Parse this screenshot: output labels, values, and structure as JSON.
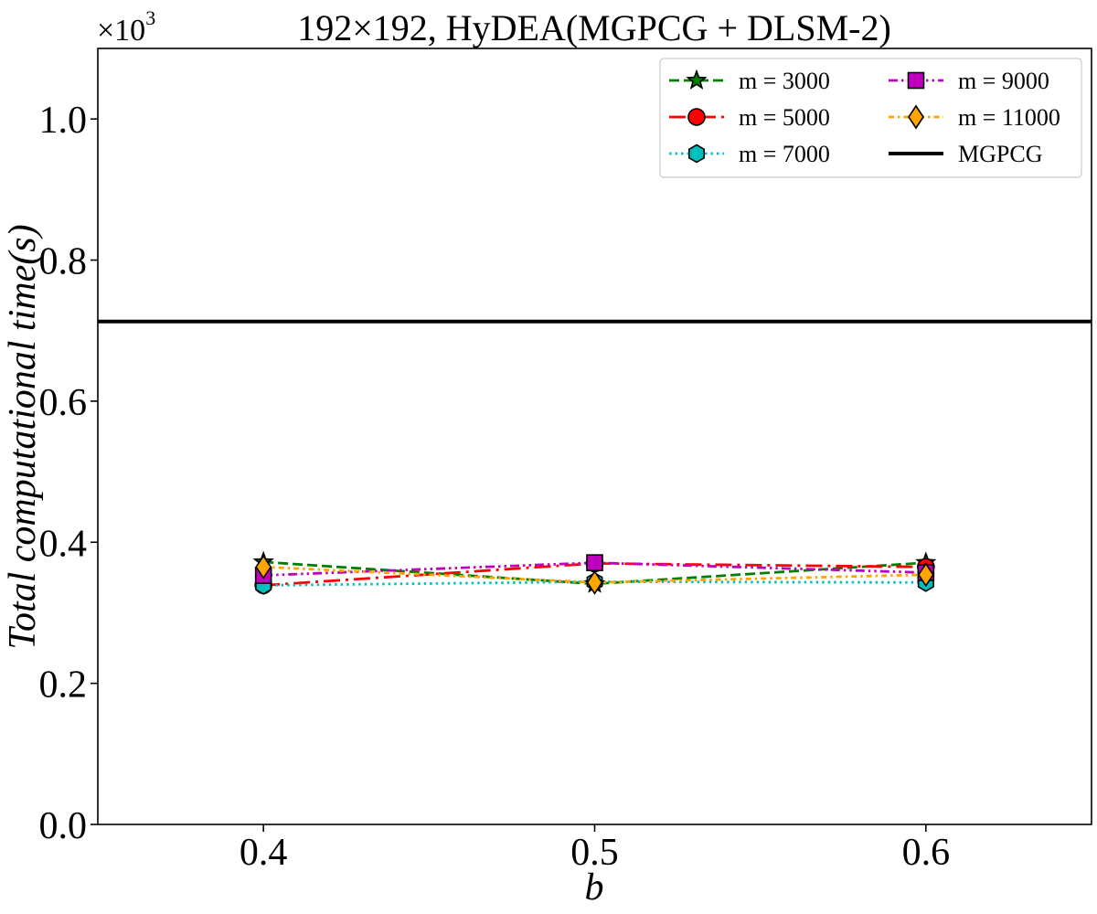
{
  "chart_data": {
    "type": "line",
    "title": "192×192, HyDEA(MGPCG + DLSM-2)",
    "xlabel": "b",
    "ylabel": "Total computational time(s)",
    "y_scale_label": "×10",
    "y_scale_exponent": "3",
    "x": [
      0.4,
      0.5,
      0.6
    ],
    "x_tick_labels": [
      "0.4",
      "0.5",
      "0.6"
    ],
    "xlim": [
      0.35,
      0.65
    ],
    "ylim": [
      0,
      1.1
    ],
    "y_ticks": [
      0.0,
      0.2,
      0.4,
      0.6,
      0.8,
      1.0
    ],
    "y_tick_labels": [
      "0.0",
      "0.2",
      "0.4",
      "0.6",
      "0.8",
      "1.0"
    ],
    "grid": false,
    "legend_position": "top-right",
    "legend_columns": 2,
    "series": [
      {
        "name": "m = 3000",
        "values": [
          0.372,
          0.341,
          0.371
        ],
        "color": "#008000",
        "dash": "dashed",
        "marker": "star"
      },
      {
        "name": "m = 5000",
        "values": [
          0.339,
          0.37,
          0.365
        ],
        "color": "#ff0000",
        "dash": "longdashdot",
        "marker": "circle"
      },
      {
        "name": "m = 7000",
        "values": [
          0.339,
          0.344,
          0.343
        ],
        "color": "#00bfbf",
        "dash": "dotted",
        "marker": "hexagon"
      },
      {
        "name": "m = 9000",
        "values": [
          0.353,
          0.371,
          0.357
        ],
        "color": "#bf00bf",
        "dash": "dashdotdot",
        "marker": "square"
      },
      {
        "name": "m = 11000",
        "values": [
          0.365,
          0.343,
          0.354
        ],
        "color": "#ffa500",
        "dash": "densedashdot",
        "marker": "diamond"
      }
    ],
    "reference_lines": [
      {
        "name": "MGPCG",
        "value": 0.713,
        "color": "#000000",
        "dash": "solid"
      }
    ]
  }
}
